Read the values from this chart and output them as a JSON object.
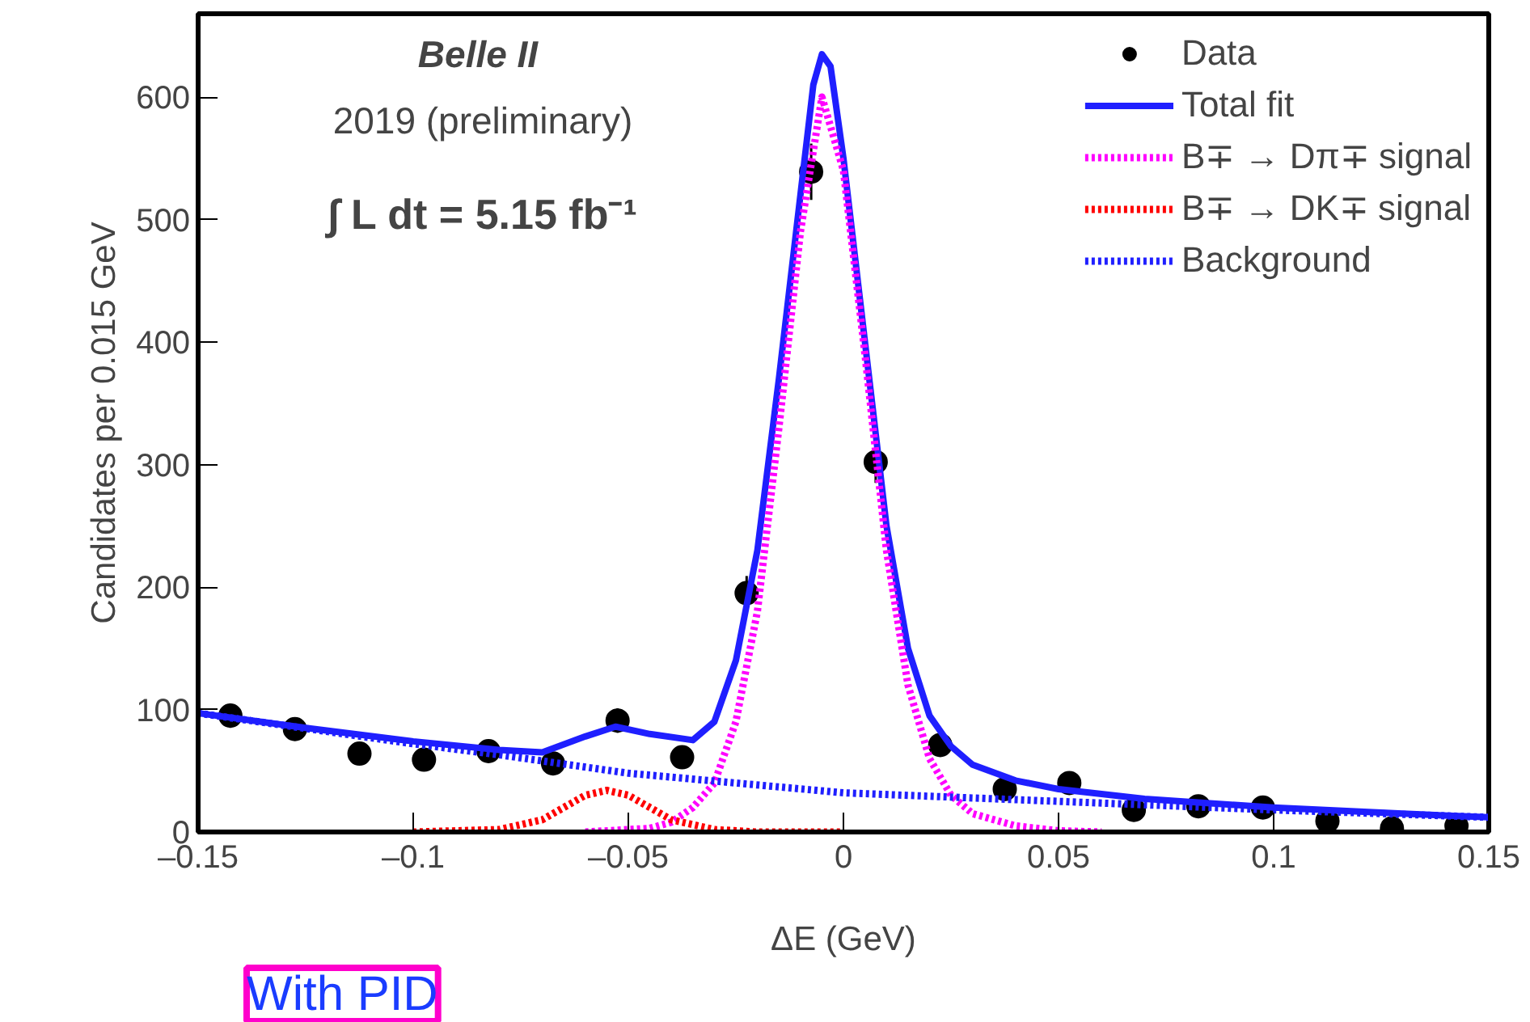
{
  "chart_data": {
    "type": "scatter",
    "xlabel": "ΔE (GeV)",
    "ylabel": "Candidates per 0.015 GeV",
    "xlim": [
      -0.15,
      0.15
    ],
    "ylim": [
      0,
      668
    ],
    "xticks": [
      {
        "value": -0.15,
        "label": "–0.15"
      },
      {
        "value": -0.1,
        "label": "–0.1"
      },
      {
        "value": -0.05,
        "label": "–0.05"
      },
      0,
      0.05,
      0.1,
      0.15
    ],
    "yticks": [
      0,
      100,
      200,
      300,
      400,
      500,
      600
    ],
    "grid": false,
    "legend": "top right",
    "annotations": [
      "Belle II",
      "2019 (preliminary)",
      "∫ L dt = 5.15 fb⁻¹",
      "With PID"
    ],
    "series": [
      {
        "name": "Data",
        "marker": "circle",
        "color": "#000000",
        "x": [
          -0.1425,
          -0.1275,
          -0.1125,
          -0.0975,
          -0.0825,
          -0.0675,
          -0.0525,
          -0.0375,
          -0.0225,
          -0.0075,
          0.0075,
          0.0225,
          0.0375,
          0.0525,
          0.0675,
          0.0825,
          0.0975,
          0.1125,
          0.1275,
          0.1425
        ],
        "values": [
          95,
          84,
          64,
          59,
          66,
          56,
          91,
          61,
          195,
          539,
          302,
          71,
          35,
          40,
          18,
          21,
          20,
          9,
          3,
          5
        ],
        "errors": [
          10,
          9,
          8,
          8,
          8,
          8,
          10,
          8,
          14,
          23,
          17,
          8,
          6,
          6,
          4,
          5,
          4,
          3,
          2,
          2
        ]
      },
      {
        "name": "Total fit",
        "type": "line",
        "line_style": "solid",
        "color": "#1f1fff",
        "x": [
          -0.15,
          -0.125,
          -0.1,
          -0.08,
          -0.07,
          -0.06,
          -0.053,
          -0.045,
          -0.035,
          -0.03,
          -0.025,
          -0.02,
          -0.015,
          -0.01,
          -0.007,
          -0.005,
          -0.003,
          0,
          0.005,
          0.01,
          0.015,
          0.02,
          0.025,
          0.03,
          0.04,
          0.05,
          0.07,
          0.1,
          0.13,
          0.15
        ],
        "values": [
          97,
          85,
          74,
          67,
          65,
          78,
          86,
          80,
          75,
          90,
          140,
          230,
          370,
          520,
          610,
          635,
          625,
          550,
          400,
          250,
          150,
          95,
          70,
          55,
          42,
          35,
          27,
          20,
          15,
          12
        ]
      },
      {
        "name": "B∓ → Dπ∓ signal",
        "type": "line",
        "line_style": "dotted",
        "color": "#ff00ff",
        "x": [
          -0.06,
          -0.045,
          -0.04,
          -0.035,
          -0.03,
          -0.025,
          -0.02,
          -0.015,
          -0.01,
          -0.005,
          0,
          0.005,
          0.01,
          0.015,
          0.02,
          0.025,
          0.03,
          0.04,
          0.05,
          0.06
        ],
        "values": [
          0,
          3,
          8,
          20,
          40,
          90,
          180,
          330,
          490,
          600,
          540,
          390,
          230,
          120,
          60,
          30,
          15,
          5,
          1,
          0
        ]
      },
      {
        "name": "B∓ → DK∓ signal",
        "type": "line",
        "line_style": "dotted",
        "color": "#ff0000",
        "x": [
          -0.1,
          -0.08,
          -0.07,
          -0.065,
          -0.06,
          -0.055,
          -0.05,
          -0.045,
          -0.04,
          -0.03,
          -0.02,
          0
        ],
        "values": [
          0,
          2,
          10,
          20,
          30,
          34,
          30,
          20,
          10,
          2,
          0,
          0
        ]
      },
      {
        "name": "Background",
        "type": "line",
        "line_style": "dotted",
        "color": "#1f1fff",
        "x": [
          -0.15,
          -0.1,
          -0.08,
          -0.05,
          0,
          0.05,
          0.1,
          0.15
        ],
        "values": [
          97,
          72,
          63,
          48,
          32,
          25,
          18,
          12
        ]
      }
    ]
  }
}
